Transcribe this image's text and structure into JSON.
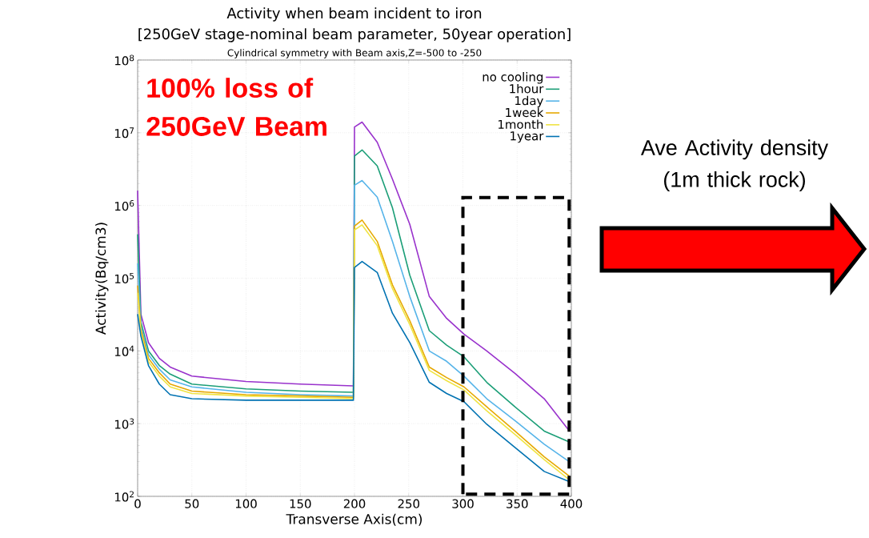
{
  "chart_data": {
    "type": "line",
    "title": "Activity when beam incident to iron",
    "subtitle": "[250GeV stage-nominal beam parameter, 50year operation]",
    "xlabel": "Transverse Axis(cm)",
    "ylabel": "Activity(Bq/cm3)",
    "annotations": [
      "Cylindrical symmetry with Beam axis,Z=-500 to -250",
      "**100% loss of 250GeV Beam**",
      "Ave Activity density (1m thick rock)"
    ],
    "x": [
      0,
      3,
      10,
      20,
      30,
      50,
      100,
      150,
      199,
      200,
      207,
      221,
      235,
      251,
      269,
      285,
      301,
      322,
      348,
      375,
      398
    ],
    "series": [
      {
        "name": "no cooling",
        "color": "#9932cc",
        "values": [
          1600000,
          32000,
          13000,
          7900,
          6000,
          4500,
          3800,
          3500,
          3300,
          12000000,
          14000000,
          7400000,
          2300000,
          550000,
          56000,
          28000,
          17000,
          10000,
          4900,
          2200,
          800
        ]
      },
      {
        "name": "1hour",
        "color": "#1b9e77",
        "values": [
          400000,
          25000,
          10000,
          6300,
          4800,
          3500,
          3000,
          2800,
          2700,
          4800000,
          5800000,
          3500000,
          930000,
          110000,
          19000,
          12000,
          8300,
          3700,
          1700,
          790,
          560
        ]
      },
      {
        "name": "1day",
        "color": "#56b4e9",
        "values": [
          160000,
          22000,
          8900,
          5600,
          4000,
          3200,
          2700,
          2500,
          2400,
          1900000,
          2200000,
          1300000,
          320000,
          56000,
          10000,
          7200,
          4500,
          2200,
          1100,
          520,
          300
        ]
      },
      {
        "name": "1week",
        "color": "#e6a800",
        "values": [
          79000,
          20000,
          7900,
          5000,
          3500,
          2800,
          2500,
          2400,
          2300,
          520000,
          630000,
          320000,
          81000,
          26000,
          6000,
          4300,
          3200,
          1700,
          790,
          350,
          190
        ]
      },
      {
        "name": "1month",
        "color": "#f0e442",
        "values": [
          63000,
          18000,
          7100,
          4500,
          3200,
          2600,
          2400,
          2300,
          2200,
          460000,
          540000,
          280000,
          72000,
          23000,
          5400,
          3900,
          2900,
          1500,
          710,
          320,
          170
        ]
      },
      {
        "name": "1year",
        "color": "#0072b2",
        "values": [
          32000,
          16000,
          6300,
          3500,
          2500,
          2200,
          2100,
          2100,
          2100,
          140000,
          170000,
          120000,
          33000,
          13000,
          3700,
          2600,
          2000,
          980,
          470,
          220,
          160
        ]
      }
    ],
    "xlim": [
      0,
      400
    ],
    "xticks": [
      0,
      50,
      100,
      150,
      200,
      250,
      300,
      350,
      400
    ],
    "ylim": [
      100,
      100000000
    ],
    "yticks": [
      {
        "value": 100,
        "label": "10$^{2}$"
      },
      {
        "value": 1000,
        "label": "10$^{3}$"
      },
      {
        "value": 10000,
        "label": "10$^{4}$"
      },
      {
        "value": 100000,
        "label": "10$^{5}$"
      },
      {
        "value": 1000000,
        "label": "10$^{6}$"
      },
      {
        "value": 10000000,
        "label": "10$^{7}$"
      },
      {
        "value": 100000000,
        "label": "10$^{8}$"
      }
    ],
    "log": "y",
    "grid": true,
    "legend": "top right",
    "marker": "none",
    "line_style": "solid"
  }
}
